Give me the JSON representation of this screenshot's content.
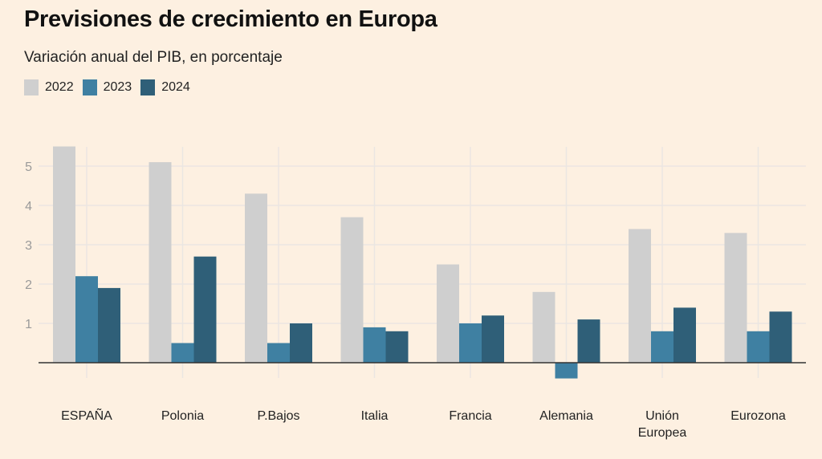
{
  "header": {
    "title": "Previsiones de crecimiento en Europa",
    "subtitle": "Variación anual del PIB, en porcentaje"
  },
  "chart_data": {
    "type": "bar",
    "title": "Previsiones de crecimiento en Europa",
    "subtitle": "Variación anual del PIB, en porcentaje",
    "xlabel": "",
    "ylabel": "",
    "ylim": [
      -0.5,
      5.5
    ],
    "yticks": [
      1,
      2,
      3,
      4,
      5
    ],
    "grid": true,
    "legend_position": "top-left",
    "categories": [
      [
        "ESPAÑA"
      ],
      [
        "Polonia"
      ],
      [
        "P.Bajos"
      ],
      [
        "Italia"
      ],
      [
        "Francia"
      ],
      [
        "Alemania"
      ],
      [
        "Unión",
        "Europea"
      ],
      [
        "Eurozona"
      ]
    ],
    "series": [
      {
        "name": "2022",
        "color": "#cfcfcf",
        "values": [
          5.5,
          5.1,
          4.3,
          3.7,
          2.5,
          1.8,
          3.4,
          3.3
        ]
      },
      {
        "name": "2023",
        "color": "#3f80a2",
        "values": [
          2.2,
          0.5,
          0.5,
          0.9,
          1.0,
          -0.4,
          0.8,
          0.8
        ]
      },
      {
        "name": "2024",
        "color": "#2f5f78",
        "values": [
          1.9,
          2.7,
          1.0,
          0.8,
          1.2,
          1.1,
          1.4,
          1.3
        ]
      }
    ]
  }
}
